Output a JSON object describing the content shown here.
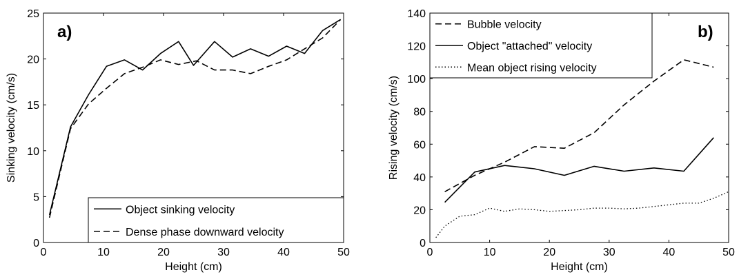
{
  "chart_data": [
    {
      "type": "line",
      "panel_label": "a)",
      "xlabel": "Height (cm)",
      "ylabel": "Sinking velocity (cm/s)",
      "xlim": [
        0,
        50
      ],
      "ylim": [
        0,
        25
      ],
      "xticks": [
        0,
        10,
        20,
        30,
        40,
        50
      ],
      "yticks": [
        0,
        5,
        10,
        15,
        20,
        25
      ],
      "grid": false,
      "legend_position": "bottom-right",
      "series": [
        {
          "name": "Object sinking velocity",
          "style": "solid",
          "x": [
            1,
            4.5,
            7.5,
            10.5,
            13.5,
            16.5,
            19.5,
            22.5,
            25,
            28.5,
            31.5,
            34.5,
            37.5,
            40.5,
            43.5,
            46.5,
            49.5
          ],
          "y": [
            3,
            12.6,
            16.1,
            19.2,
            19.9,
            18.8,
            20.6,
            21.9,
            19.3,
            21.9,
            20.2,
            21.1,
            20.3,
            21.4,
            20.6,
            23.1,
            24.3
          ]
        },
        {
          "name": "Dense phase downward velocity",
          "style": "dashed",
          "x": [
            1,
            4.5,
            7.5,
            10.5,
            13.5,
            16.5,
            19.5,
            22.5,
            25.5,
            28.5,
            31.5,
            34.5,
            37.5,
            40.5,
            43.5,
            46.5,
            49.5
          ],
          "y": [
            2.7,
            12.4,
            15.1,
            16.8,
            18.4,
            19.1,
            19.9,
            19.4,
            19.8,
            18.8,
            18.8,
            18.4,
            19.2,
            19.9,
            21.1,
            22.3,
            24.3
          ]
        }
      ]
    },
    {
      "type": "line",
      "panel_label": "b)",
      "xlabel": "Height (cm)",
      "ylabel": "Rising velocity (cm/s)",
      "xlim": [
        0,
        50
      ],
      "ylim": [
        0,
        140
      ],
      "xticks": [
        0,
        10,
        20,
        30,
        40,
        50
      ],
      "yticks": [
        0,
        20,
        40,
        60,
        80,
        100,
        120,
        140
      ],
      "grid": false,
      "legend_position": "top-left",
      "series": [
        {
          "name": "Bubble velocity",
          "style": "dashed",
          "x": [
            2.5,
            7.5,
            12.5,
            17.5,
            22.5,
            27.5,
            32.5,
            37.5,
            42.5,
            47.5
          ],
          "y": [
            31,
            41,
            49,
            58.5,
            57.5,
            67,
            84,
            98.5,
            111.5,
            107
          ]
        },
        {
          "name": "Object \"attached\" velocity",
          "style": "solid",
          "x": [
            2.5,
            7.5,
            12.5,
            17.5,
            22.5,
            27.5,
            32.5,
            37.5,
            42.5,
            47.5
          ],
          "y": [
            24.5,
            43,
            47,
            45,
            41,
            46.5,
            43.5,
            45.5,
            43.5,
            64
          ]
        },
        {
          "name": "Mean object rising velocity",
          "style": "dotted",
          "x": [
            1,
            2.5,
            5,
            7.5,
            10,
            12.5,
            15,
            17.5,
            20,
            22.5,
            25,
            27.5,
            30,
            32.5,
            35,
            37.5,
            40,
            42.5,
            45,
            47.5,
            50
          ],
          "y": [
            3,
            10,
            16,
            17,
            21,
            19,
            20.5,
            20,
            19,
            19.5,
            20,
            21,
            21,
            20.5,
            21,
            22,
            23,
            24,
            24,
            27,
            31
          ]
        }
      ]
    }
  ]
}
